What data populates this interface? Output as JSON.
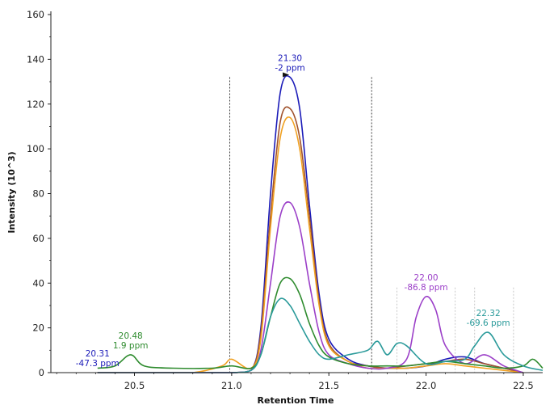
{
  "chart_data": {
    "type": "line",
    "xlabel": "Retention Time",
    "ylabel": "Intensity (10^3)",
    "xlim": [
      20.07,
      22.6
    ],
    "ylim": [
      0,
      160
    ],
    "xticks": [
      20.5,
      21.0,
      21.5,
      22.0,
      22.5
    ],
    "yticks": [
      0,
      20,
      40,
      60,
      80,
      100,
      120,
      140,
      160
    ],
    "integration_boundaries": [
      20.99,
      21.72
    ],
    "grid": false,
    "colors": {
      "blue": "#1a1ab8",
      "brown": "#a0522d",
      "orange": "#f0a020",
      "purple": "#9b3fc8",
      "green": "#2e8b2e",
      "teal": "#2a9a9a"
    },
    "series": [
      {
        "color": "#1a1ab8",
        "x": [
          20.31,
          20.4,
          20.6,
          20.8,
          21.0,
          21.1,
          21.15,
          21.2,
          21.25,
          21.3,
          21.35,
          21.4,
          21.45,
          21.5,
          21.6,
          21.7,
          21.8,
          21.9,
          22.0,
          22.1,
          22.2,
          22.3,
          22.4,
          22.5
        ],
        "y": [
          0,
          0,
          0,
          0,
          0,
          1,
          20,
          80,
          125,
          132,
          118,
          75,
          35,
          15,
          6,
          3,
          2,
          2,
          3,
          6,
          7,
          4,
          2,
          0
        ]
      },
      {
        "color": "#a0522d",
        "x": [
          20.31,
          20.4,
          20.6,
          20.8,
          21.0,
          21.1,
          21.15,
          21.2,
          21.25,
          21.3,
          21.35,
          21.4,
          21.45,
          21.5,
          21.6,
          21.7,
          21.8,
          21.9,
          22.0,
          22.1,
          22.2,
          22.3,
          22.4,
          22.5
        ],
        "y": [
          0,
          0,
          0,
          0,
          0,
          1,
          18,
          70,
          112,
          118,
          105,
          70,
          32,
          13,
          5,
          3,
          2,
          3,
          4,
          5,
          6,
          4,
          2,
          0
        ]
      },
      {
        "color": "#f0a020",
        "x": [
          20.31,
          20.4,
          20.6,
          20.8,
          20.95,
          21.0,
          21.1,
          21.15,
          21.2,
          21.25,
          21.3,
          21.35,
          21.4,
          21.45,
          21.5,
          21.6,
          21.7,
          21.8,
          21.9,
          22.0,
          22.1,
          22.2,
          22.3,
          22.4,
          22.5
        ],
        "y": [
          0,
          0,
          0,
          0,
          3,
          6,
          2,
          15,
          65,
          105,
          114,
          100,
          65,
          30,
          12,
          5,
          2,
          2,
          2,
          3,
          4,
          3,
          2,
          1,
          0
        ]
      },
      {
        "color": "#9b3fc8",
        "x": [
          20.31,
          20.5,
          20.8,
          21.0,
          21.1,
          21.15,
          21.2,
          21.25,
          21.3,
          21.35,
          21.4,
          21.45,
          21.5,
          21.6,
          21.7,
          21.8,
          21.9,
          21.95,
          22.0,
          22.05,
          22.1,
          22.2,
          22.3,
          22.4,
          22.5
        ],
        "y": [
          0,
          0,
          0,
          0,
          1,
          10,
          40,
          70,
          76,
          65,
          40,
          18,
          8,
          4,
          2,
          2,
          6,
          25,
          34,
          28,
          12,
          4,
          8,
          3,
          0
        ]
      },
      {
        "color": "#2e8b2e",
        "x": [
          20.31,
          20.4,
          20.48,
          20.55,
          20.7,
          20.9,
          21.0,
          21.1,
          21.15,
          21.2,
          21.25,
          21.3,
          21.35,
          21.4,
          21.45,
          21.5,
          21.6,
          21.7,
          21.8,
          21.9,
          22.0,
          22.1,
          22.2,
          22.3,
          22.4,
          22.5,
          22.55,
          22.6
        ],
        "y": [
          2,
          3,
          8,
          3,
          2,
          2,
          3,
          2,
          8,
          25,
          40,
          42,
          35,
          22,
          12,
          7,
          4,
          3,
          3,
          3,
          4,
          5,
          4,
          3,
          2,
          3,
          6,
          2
        ]
      },
      {
        "color": "#2a9a9a",
        "x": [
          20.31,
          20.5,
          20.8,
          21.0,
          21.1,
          21.15,
          21.2,
          21.25,
          21.3,
          21.35,
          21.4,
          21.45,
          21.5,
          21.6,
          21.7,
          21.75,
          21.8,
          21.85,
          21.9,
          22.0,
          22.1,
          22.2,
          22.25,
          22.32,
          22.4,
          22.5,
          22.6
        ],
        "y": [
          0,
          0,
          0,
          0,
          1,
          8,
          25,
          33,
          30,
          22,
          14,
          8,
          6,
          8,
          10,
          14,
          8,
          13,
          12,
          4,
          5,
          6,
          12,
          18,
          8,
          3,
          1
        ]
      }
    ],
    "annotations": [
      {
        "rt": "21.30",
        "ppm": "-2 ppm",
        "x": 21.3,
        "y": 132,
        "color": "#1a1ab8",
        "marker": true
      },
      {
        "rt": "20.31",
        "ppm": "-47.3 ppm",
        "x": 20.31,
        "y": 0,
        "color": "#1a1ab8"
      },
      {
        "rt": "20.48",
        "ppm": "1.9 ppm",
        "x": 20.48,
        "y": 8,
        "color": "#2e8b2e"
      },
      {
        "rt": "22.00",
        "ppm": "-86.8 ppm",
        "x": 22.0,
        "y": 34,
        "color": "#9b3fc8"
      },
      {
        "rt": "22.32",
        "ppm": "-69.6 ppm",
        "x": 22.32,
        "y": 18,
        "color": "#2a9a9a"
      }
    ],
    "reference_lines": [
      21.85,
      22.15,
      22.25,
      22.45
    ]
  }
}
